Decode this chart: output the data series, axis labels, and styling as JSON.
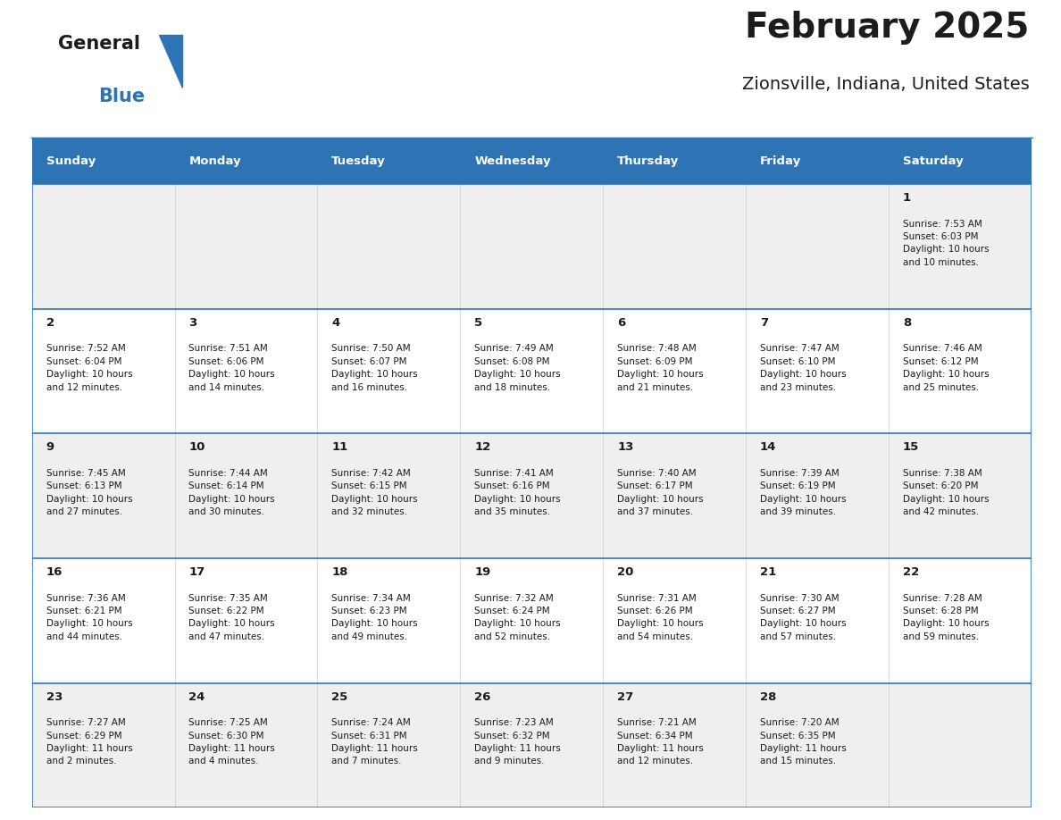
{
  "title": "February 2025",
  "subtitle": "Zionsville, Indiana, United States",
  "header_bg_color": "#2E74B5",
  "header_text_color": "#FFFFFF",
  "white_bg": "#FFFFFF",
  "gray_bg": "#EFEFEF",
  "border_color": "#2E74B5",
  "text_color": "#1a1a1a",
  "day_headers": [
    "Sunday",
    "Monday",
    "Tuesday",
    "Wednesday",
    "Thursday",
    "Friday",
    "Saturday"
  ],
  "weeks": [
    [
      {
        "day": "",
        "info": ""
      },
      {
        "day": "",
        "info": ""
      },
      {
        "day": "",
        "info": ""
      },
      {
        "day": "",
        "info": ""
      },
      {
        "day": "",
        "info": ""
      },
      {
        "day": "",
        "info": ""
      },
      {
        "day": "1",
        "info": "Sunrise: 7:53 AM\nSunset: 6:03 PM\nDaylight: 10 hours\nand 10 minutes."
      }
    ],
    [
      {
        "day": "2",
        "info": "Sunrise: 7:52 AM\nSunset: 6:04 PM\nDaylight: 10 hours\nand 12 minutes."
      },
      {
        "day": "3",
        "info": "Sunrise: 7:51 AM\nSunset: 6:06 PM\nDaylight: 10 hours\nand 14 minutes."
      },
      {
        "day": "4",
        "info": "Sunrise: 7:50 AM\nSunset: 6:07 PM\nDaylight: 10 hours\nand 16 minutes."
      },
      {
        "day": "5",
        "info": "Sunrise: 7:49 AM\nSunset: 6:08 PM\nDaylight: 10 hours\nand 18 minutes."
      },
      {
        "day": "6",
        "info": "Sunrise: 7:48 AM\nSunset: 6:09 PM\nDaylight: 10 hours\nand 21 minutes."
      },
      {
        "day": "7",
        "info": "Sunrise: 7:47 AM\nSunset: 6:10 PM\nDaylight: 10 hours\nand 23 minutes."
      },
      {
        "day": "8",
        "info": "Sunrise: 7:46 AM\nSunset: 6:12 PM\nDaylight: 10 hours\nand 25 minutes."
      }
    ],
    [
      {
        "day": "9",
        "info": "Sunrise: 7:45 AM\nSunset: 6:13 PM\nDaylight: 10 hours\nand 27 minutes."
      },
      {
        "day": "10",
        "info": "Sunrise: 7:44 AM\nSunset: 6:14 PM\nDaylight: 10 hours\nand 30 minutes."
      },
      {
        "day": "11",
        "info": "Sunrise: 7:42 AM\nSunset: 6:15 PM\nDaylight: 10 hours\nand 32 minutes."
      },
      {
        "day": "12",
        "info": "Sunrise: 7:41 AM\nSunset: 6:16 PM\nDaylight: 10 hours\nand 35 minutes."
      },
      {
        "day": "13",
        "info": "Sunrise: 7:40 AM\nSunset: 6:17 PM\nDaylight: 10 hours\nand 37 minutes."
      },
      {
        "day": "14",
        "info": "Sunrise: 7:39 AM\nSunset: 6:19 PM\nDaylight: 10 hours\nand 39 minutes."
      },
      {
        "day": "15",
        "info": "Sunrise: 7:38 AM\nSunset: 6:20 PM\nDaylight: 10 hours\nand 42 minutes."
      }
    ],
    [
      {
        "day": "16",
        "info": "Sunrise: 7:36 AM\nSunset: 6:21 PM\nDaylight: 10 hours\nand 44 minutes."
      },
      {
        "day": "17",
        "info": "Sunrise: 7:35 AM\nSunset: 6:22 PM\nDaylight: 10 hours\nand 47 minutes."
      },
      {
        "day": "18",
        "info": "Sunrise: 7:34 AM\nSunset: 6:23 PM\nDaylight: 10 hours\nand 49 minutes."
      },
      {
        "day": "19",
        "info": "Sunrise: 7:32 AM\nSunset: 6:24 PM\nDaylight: 10 hours\nand 52 minutes."
      },
      {
        "day": "20",
        "info": "Sunrise: 7:31 AM\nSunset: 6:26 PM\nDaylight: 10 hours\nand 54 minutes."
      },
      {
        "day": "21",
        "info": "Sunrise: 7:30 AM\nSunset: 6:27 PM\nDaylight: 10 hours\nand 57 minutes."
      },
      {
        "day": "22",
        "info": "Sunrise: 7:28 AM\nSunset: 6:28 PM\nDaylight: 10 hours\nand 59 minutes."
      }
    ],
    [
      {
        "day": "23",
        "info": "Sunrise: 7:27 AM\nSunset: 6:29 PM\nDaylight: 11 hours\nand 2 minutes."
      },
      {
        "day": "24",
        "info": "Sunrise: 7:25 AM\nSunset: 6:30 PM\nDaylight: 11 hours\nand 4 minutes."
      },
      {
        "day": "25",
        "info": "Sunrise: 7:24 AM\nSunset: 6:31 PM\nDaylight: 11 hours\nand 7 minutes."
      },
      {
        "day": "26",
        "info": "Sunrise: 7:23 AM\nSunset: 6:32 PM\nDaylight: 11 hours\nand 9 minutes."
      },
      {
        "day": "27",
        "info": "Sunrise: 7:21 AM\nSunset: 6:34 PM\nDaylight: 11 hours\nand 12 minutes."
      },
      {
        "day": "28",
        "info": "Sunrise: 7:20 AM\nSunset: 6:35 PM\nDaylight: 11 hours\nand 15 minutes."
      },
      {
        "day": "",
        "info": ""
      }
    ]
  ],
  "row_colors": [
    "#EFEFEF",
    "#FFFFFF",
    "#EFEFEF",
    "#FFFFFF",
    "#EFEFEF"
  ]
}
